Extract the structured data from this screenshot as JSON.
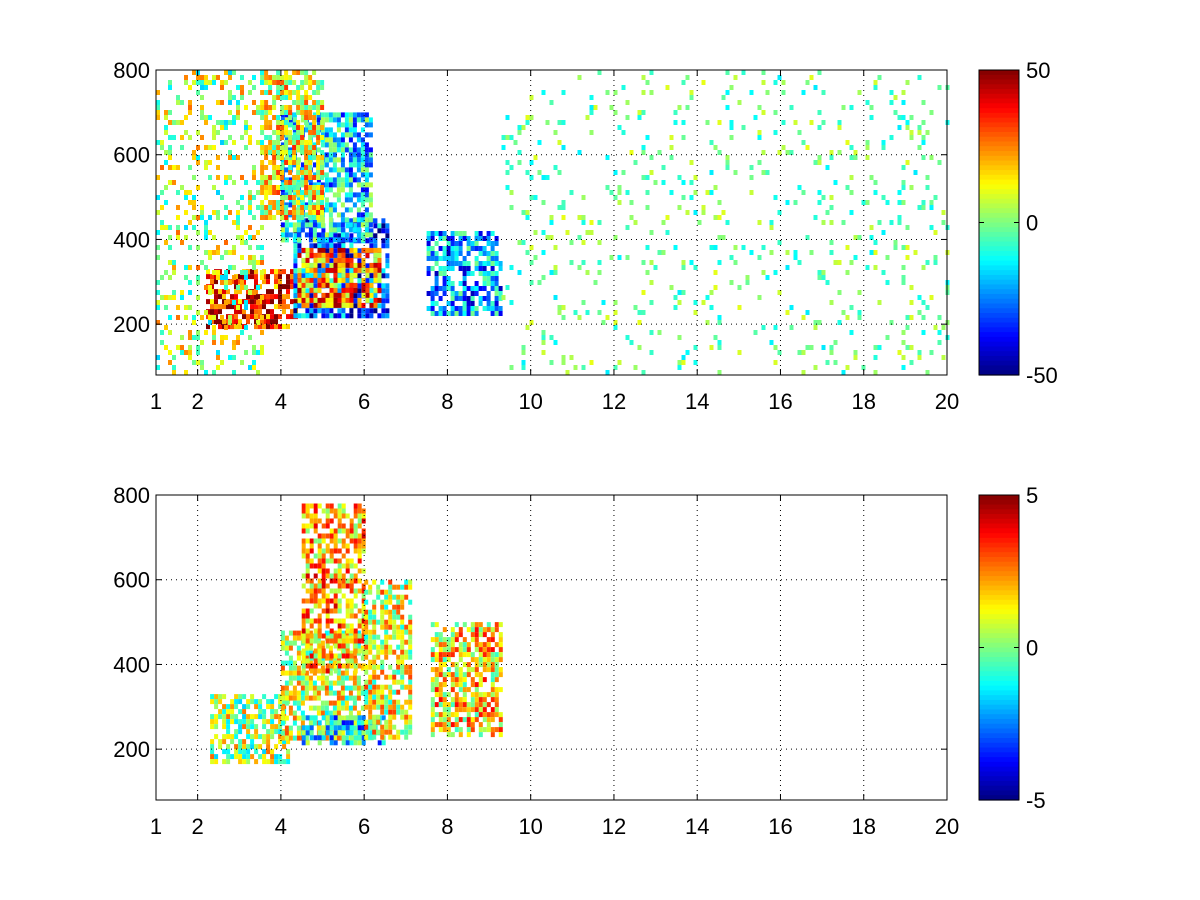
{
  "chart_data": [
    {
      "type": "heatmap",
      "title": "",
      "xlabel": "",
      "ylabel": "",
      "xlim": [
        1,
        20
      ],
      "ylim": [
        80,
        800
      ],
      "xticks": [
        1,
        2,
        4,
        6,
        8,
        10,
        12,
        14,
        16,
        18,
        20
      ],
      "yticks": [
        200,
        400,
        600,
        800
      ],
      "grid": true,
      "colormap": "jet",
      "color_range": [
        -50,
        50
      ],
      "colorbar_ticks": [
        -50,
        0,
        50
      ],
      "regions": [
        {
          "x": [
            2.2,
            4.4
          ],
          "y": [
            200,
            330
          ],
          "value": 35
        },
        {
          "x": [
            4.3,
            6.6
          ],
          "y": [
            220,
            450
          ],
          "value": -30
        },
        {
          "x": [
            4.4,
            6.4
          ],
          "y": [
            250,
            380
          ],
          "value": 25
        },
        {
          "x": [
            4.0,
            6.2
          ],
          "y": [
            400,
            700
          ],
          "value": -15
        },
        {
          "x": [
            3.5,
            5.0
          ],
          "y": [
            450,
            800
          ],
          "value": 12
        },
        {
          "x": [
            7.5,
            9.3
          ],
          "y": [
            230,
            420
          ],
          "value": -22
        },
        {
          "x": [
            1.0,
            3.5
          ],
          "y": [
            80,
            800
          ],
          "value": 5
        },
        {
          "x": [
            9.3,
            20.0
          ],
          "y": [
            80,
            800
          ],
          "value": -2
        }
      ]
    },
    {
      "type": "heatmap",
      "title": "",
      "xlabel": "",
      "ylabel": "",
      "xlim": [
        1,
        20
      ],
      "ylim": [
        80,
        800
      ],
      "xticks": [
        1,
        2,
        4,
        6,
        8,
        10,
        12,
        14,
        16,
        18,
        20
      ],
      "yticks": [
        200,
        400,
        600,
        800
      ],
      "grid": true,
      "colormap": "jet",
      "color_range": [
        -5,
        5
      ],
      "colorbar_ticks": [
        -5,
        0,
        5
      ],
      "regions": [
        {
          "x": [
            2.3,
            4.2
          ],
          "y": [
            170,
            330
          ],
          "value": 0.5
        },
        {
          "x": [
            4.0,
            6.0
          ],
          "y": [
            230,
            480
          ],
          "value": 0.8
        },
        {
          "x": [
            4.5,
            6.0
          ],
          "y": [
            380,
            780
          ],
          "value": 2.0
        },
        {
          "x": [
            4.5,
            6.5
          ],
          "y": [
            220,
            280
          ],
          "value": -1.5
        },
        {
          "x": [
            6.0,
            7.1
          ],
          "y": [
            230,
            600
          ],
          "value": 1.0
        },
        {
          "x": [
            7.6,
            9.3
          ],
          "y": [
            230,
            500
          ],
          "value": 1.5
        }
      ]
    }
  ]
}
